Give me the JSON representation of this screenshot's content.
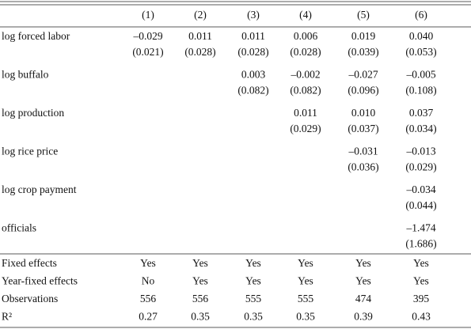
{
  "table": {
    "header": [
      "(1)",
      "(2)",
      "(3)",
      "(4)",
      "(5)",
      "(6)"
    ],
    "rows": [
      {
        "label": "log forced labor",
        "coef": [
          "–0.029",
          "0.011",
          "0.011",
          "0.006",
          "0.019",
          "0.040"
        ],
        "se": [
          "(0.021)",
          "(0.028)",
          "(0.028)",
          "(0.028)",
          "(0.039)",
          "(0.053)"
        ]
      },
      {
        "label": "log buffalo",
        "coef": [
          null,
          null,
          "0.003",
          "–0.002",
          "–0.027",
          "–0.005"
        ],
        "se": [
          null,
          null,
          "(0.082)",
          "(0.082)",
          "(0.096)",
          "(0.108)"
        ]
      },
      {
        "label": "log production",
        "coef": [
          null,
          null,
          null,
          "0.011",
          "0.010",
          "0.037"
        ],
        "se": [
          null,
          null,
          null,
          "(0.029)",
          "(0.037)",
          "(0.034)"
        ]
      },
      {
        "label": "log rice price",
        "coef": [
          null,
          null,
          null,
          null,
          "–0.031",
          "–0.013"
        ],
        "se": [
          null,
          null,
          null,
          null,
          "(0.036)",
          "(0.029)"
        ]
      },
      {
        "label": "log crop payment",
        "coef": [
          null,
          null,
          null,
          null,
          null,
          "–0.034"
        ],
        "se": [
          null,
          null,
          null,
          null,
          null,
          "(0.044)"
        ]
      },
      {
        "label": "officials",
        "coef": [
          null,
          null,
          null,
          null,
          null,
          "–1.474"
        ],
        "se": [
          null,
          null,
          null,
          null,
          null,
          "(1.686)"
        ]
      }
    ],
    "footer": [
      {
        "label": "Fixed effects",
        "values": [
          "Yes",
          "Yes",
          "Yes",
          "Yes",
          "Yes",
          "Yes"
        ]
      },
      {
        "label": "Year-fixed effects",
        "values": [
          "No",
          "Yes",
          "Yes",
          "Yes",
          "Yes",
          "Yes"
        ]
      },
      {
        "label": "Observations",
        "values": [
          556,
          556,
          555,
          555,
          474,
          395
        ]
      },
      {
        "label": "R²",
        "values": [
          0.27,
          0.35,
          0.35,
          0.35,
          0.39,
          0.43
        ]
      }
    ]
  }
}
